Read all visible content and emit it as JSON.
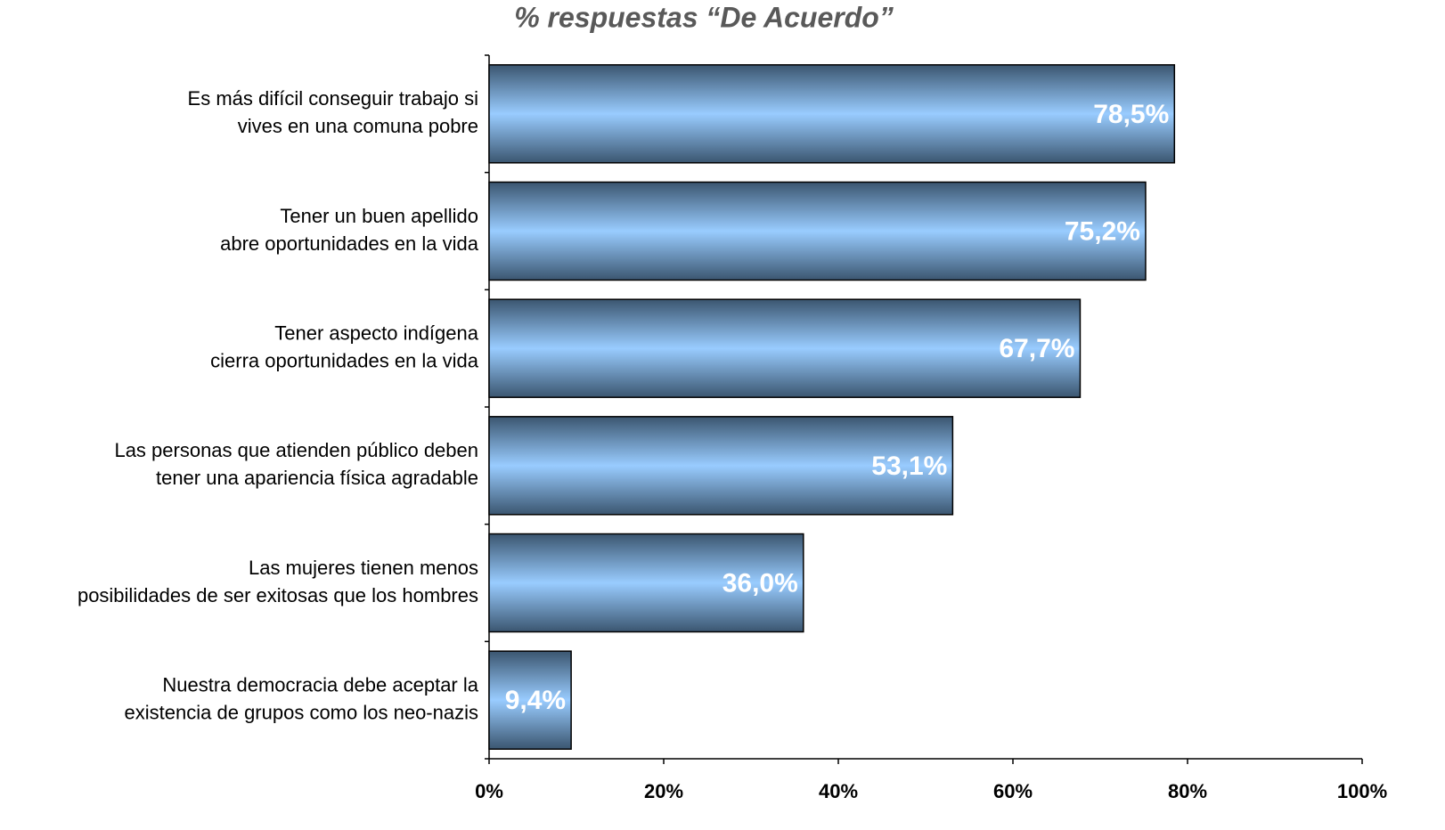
{
  "chart_data": {
    "type": "hbar",
    "title": "% respuestas “De Acuerdo”",
    "categories": [
      [
        "Es más difícil conseguir trabajo si",
        "vives en una comuna pobre"
      ],
      [
        "Tener un buen apellido",
        "abre oportunidades en la vida"
      ],
      [
        "Tener aspecto indígena",
        "cierra oportunidades en la vida"
      ],
      [
        "Las personas que atienden público deben",
        "tener una apariencia física agradable"
      ],
      [
        "Las mujeres tienen menos",
        "posibilidades de ser exitosas que los hombres"
      ],
      [
        "Nuestra democracia debe aceptar la",
        "existencia de grupos como los neo-nazis"
      ]
    ],
    "values": [
      78.5,
      75.2,
      67.7,
      53.1,
      36.0,
      9.4
    ],
    "value_labels": [
      "78,5%",
      "75,2%",
      "67,7%",
      "53,1%",
      "36,0%",
      "9,4%"
    ],
    "color": "#99ccff",
    "xlim": [
      0,
      100
    ],
    "xticks": [
      {
        "value": 0,
        "label": "0%"
      },
      {
        "value": 20,
        "label": "20%"
      },
      {
        "value": 40,
        "label": "40%"
      },
      {
        "value": 60,
        "label": "60%"
      },
      {
        "value": 80,
        "label": "80%"
      },
      {
        "value": 100,
        "label": "100%"
      }
    ]
  }
}
